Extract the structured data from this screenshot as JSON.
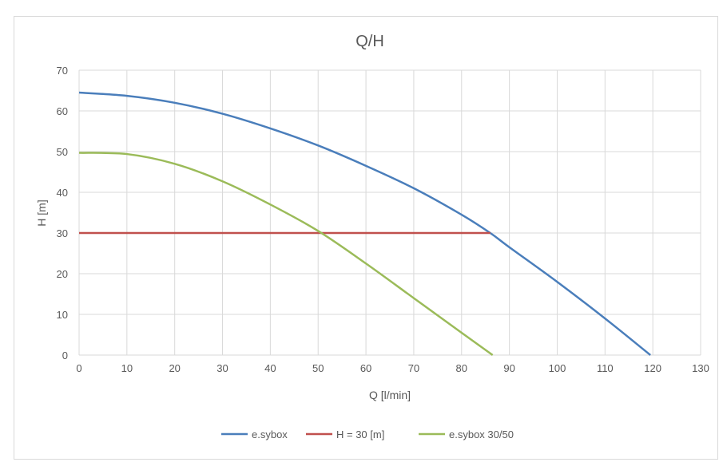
{
  "chart_data": {
    "type": "line",
    "title": "Q/H",
    "xlabel": "Q [l/min]",
    "ylabel": "H [m]",
    "xlim": [
      0,
      130
    ],
    "ylim": [
      0,
      70
    ],
    "xticks": [
      0,
      10,
      20,
      30,
      40,
      50,
      60,
      70,
      80,
      90,
      100,
      110,
      120,
      130
    ],
    "yticks": [
      0,
      10,
      20,
      30,
      40,
      50,
      60,
      70
    ],
    "grid": true,
    "legend_position": "bottom",
    "series": [
      {
        "name": "e.sybox",
        "color": "#4a7ebb",
        "x": [
          0,
          10,
          20,
          30,
          40,
          50,
          60,
          70,
          80,
          86,
          90,
          100,
          110,
          119.5
        ],
        "y": [
          64.5,
          63.7,
          62,
          59.3,
          55.7,
          51.5,
          46.5,
          41,
          34.5,
          30,
          26.5,
          18,
          9,
          0
        ]
      },
      {
        "name": "H = 30 [m]",
        "color": "#c0504d",
        "x": [
          0,
          86
        ],
        "y": [
          30,
          30
        ]
      },
      {
        "name": "e.sybox 30/50",
        "color": "#9bbb59",
        "x": [
          0,
          10,
          20,
          30,
          40,
          50,
          60,
          70,
          80,
          86.5
        ],
        "y": [
          49.7,
          49.4,
          47,
          42.7,
          37,
          30.5,
          22.5,
          14,
          5.5,
          0
        ]
      }
    ]
  }
}
